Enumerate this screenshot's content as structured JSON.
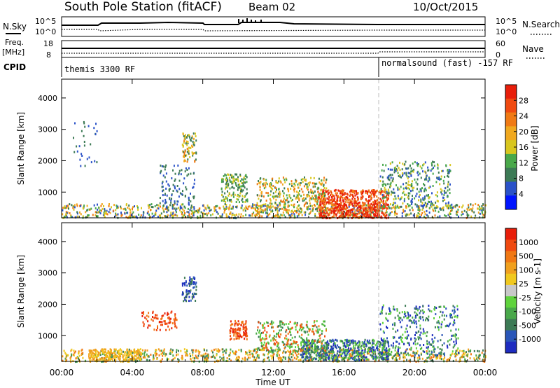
{
  "header": {
    "station": "South Pole Station (fitACF)",
    "beam": "Beam 02",
    "date": "10/Oct/2015"
  },
  "noise_panel": {
    "left_label": "N.Sky",
    "right_label": "N.Search",
    "left_ticks": [
      "10^5",
      "10^0"
    ],
    "right_ticks": [
      "10^5",
      "10^0"
    ]
  },
  "freq_panel": {
    "left_label_1": "Freq.",
    "left_label_2": "[MHz]",
    "right_label": "Nave",
    "left_ticks": [
      "18",
      "8"
    ],
    "right_ticks": [
      "60",
      "0"
    ]
  },
  "cpid_panel": {
    "label": "CPID",
    "program_1": "themis 3300 RF",
    "program_2": "normalsound (fast) -157 RF"
  },
  "chart_data": [
    {
      "type": "heatmap",
      "title": "",
      "ylabel": "Slant Range [km]",
      "xlabel": "",
      "x_ticks": [
        "00:00",
        "04:00",
        "08:00",
        "12:00",
        "16:00",
        "20:00",
        "00:00"
      ],
      "y_ticks": [
        1000,
        2000,
        3000,
        4000
      ],
      "xlim_hours": [
        0,
        24
      ],
      "ylim": [
        180,
        4600
      ],
      "colorbar": {
        "label": "Power [dB]",
        "ticks": [
          4,
          8,
          12,
          16,
          20,
          24,
          28
        ],
        "colors": [
          "#0014ff",
          "#2a52c8",
          "#3c7a55",
          "#49a84a",
          "#d8c61e",
          "#f0a81e",
          "#f07a14",
          "#f04a10",
          "#e81e0a"
        ]
      },
      "program_change_hour": 18
    },
    {
      "type": "heatmap",
      "title": "",
      "ylabel": "Slant Range [km]",
      "xlabel": "Time UT",
      "x_ticks": [
        "00:00",
        "04:00",
        "08:00",
        "12:00",
        "16:00",
        "20:00",
        "00:00"
      ],
      "y_ticks": [
        1000,
        2000,
        3000,
        4000
      ],
      "xlim_hours": [
        0,
        24
      ],
      "ylim": [
        180,
        4600
      ],
      "colorbar": {
        "label": "Velocity [m s-1]",
        "ticks": [
          1000,
          500,
          100,
          25,
          -25,
          -100,
          -500,
          -1000
        ],
        "colors": [
          "#1e2cc0",
          "#2a56b8",
          "#3c7a55",
          "#49a84a",
          "#5fd33c",
          "#c8c8c8",
          "#f0c81e",
          "#f0a01e",
          "#f07814",
          "#f04a10",
          "#e81e0a"
        ]
      },
      "program_change_hour": 18
    }
  ]
}
